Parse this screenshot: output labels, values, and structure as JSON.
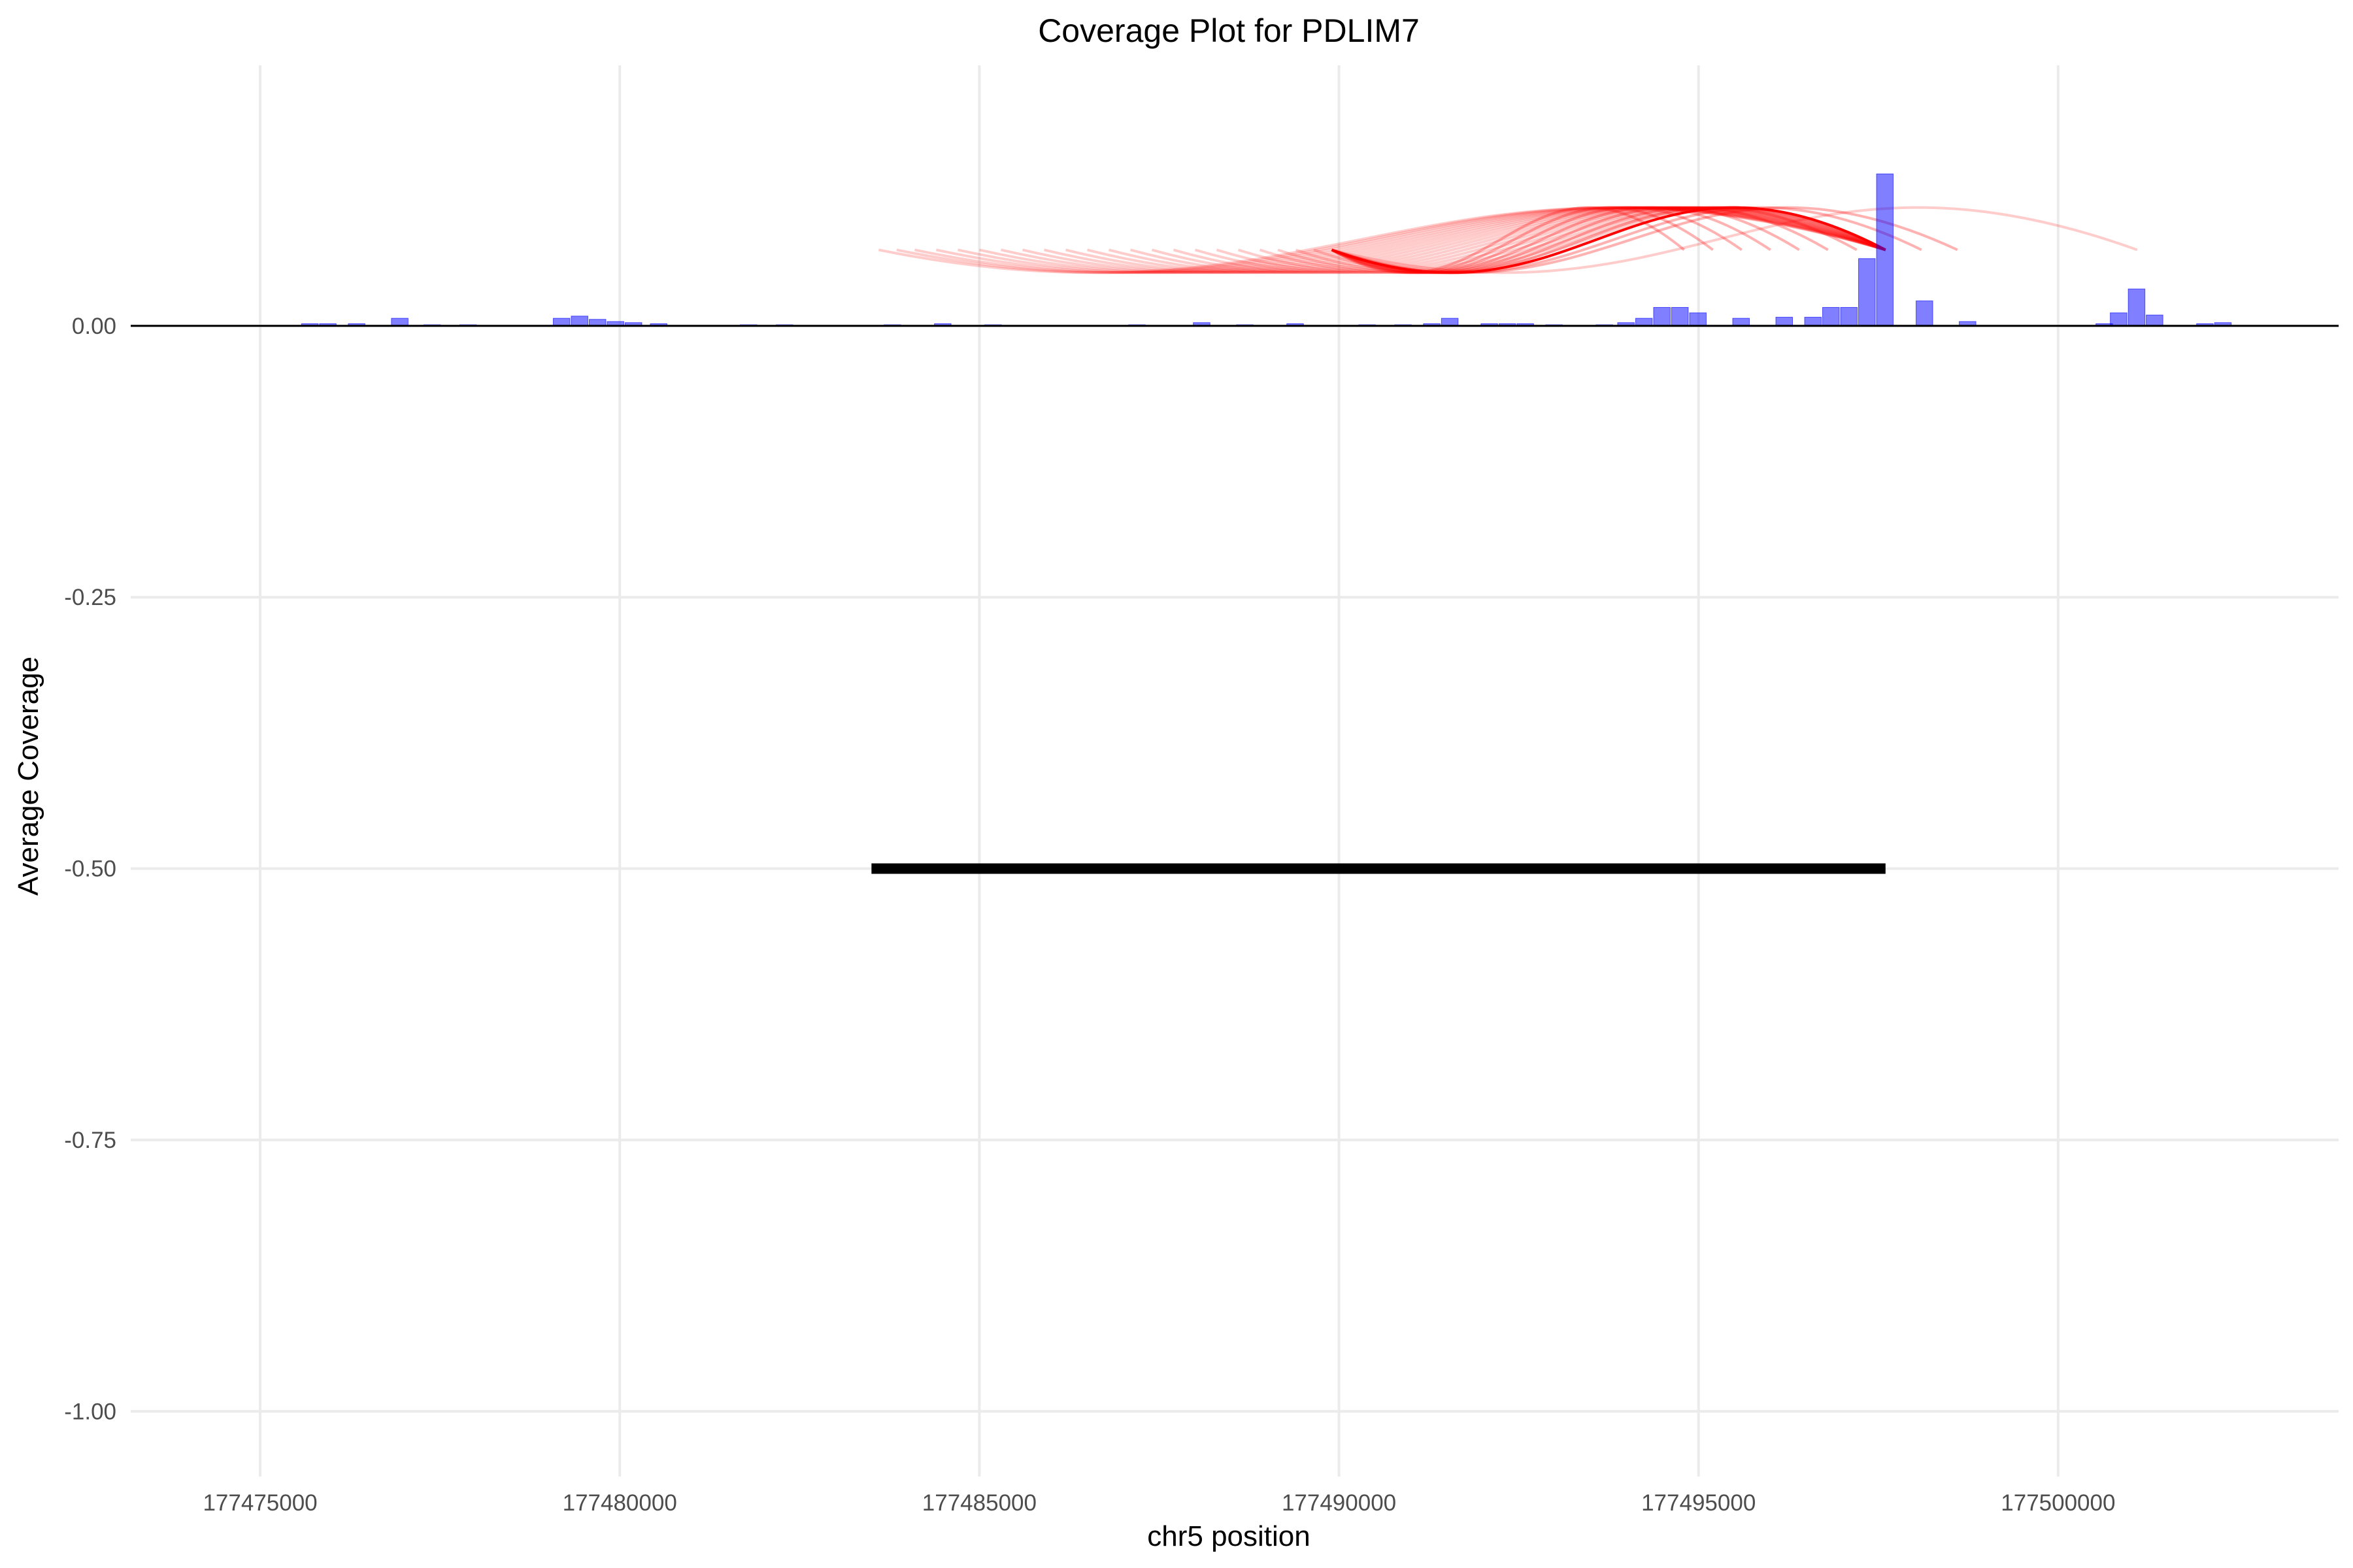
{
  "chart_data": {
    "type": "bar",
    "title": "Coverage Plot for PDLIM7",
    "xlabel": "chr5 position",
    "ylabel": "Average Coverage",
    "xlim": [
      177473200,
      177503900
    ],
    "ylim": [
      -1.06,
      0.24
    ],
    "x_ticks": [
      177475000,
      177480000,
      177485000,
      177490000,
      177495000,
      177500000
    ],
    "x_tick_labels": [
      "177475000",
      "177480000",
      "177485000",
      "177490000",
      "177495000",
      "177500000"
    ],
    "y_ticks": [
      0,
      -0.25,
      -0.5,
      -0.75,
      -1
    ],
    "y_tick_labels": [
      "0.00",
      "-0.25",
      "-0.50",
      "-0.75",
      "-1.00"
    ],
    "grid": true,
    "bin_width": 250,
    "colors": {
      "bars": "#0000ff",
      "arcs": "#ff0000",
      "gene": "#000000",
      "baseline": "#000000"
    },
    "coverage": [
      {
        "x": 177475700,
        "y": 0.002
      },
      {
        "x": 177475950,
        "y": 0.002
      },
      {
        "x": 177476350,
        "y": 0.002
      },
      {
        "x": 177476950,
        "y": 0.007
      },
      {
        "x": 177477400,
        "y": 0.001
      },
      {
        "x": 177477900,
        "y": 0.001
      },
      {
        "x": 177479200,
        "y": 0.007
      },
      {
        "x": 177479450,
        "y": 0.009
      },
      {
        "x": 177479700,
        "y": 0.006
      },
      {
        "x": 177479950,
        "y": 0.004
      },
      {
        "x": 177480200,
        "y": 0.003
      },
      {
        "x": 177480550,
        "y": 0.002
      },
      {
        "x": 177481800,
        "y": 0.001
      },
      {
        "x": 177482300,
        "y": 0.001
      },
      {
        "x": 177483800,
        "y": 0.001
      },
      {
        "x": 177484500,
        "y": 0.002
      },
      {
        "x": 177485200,
        "y": 0.001
      },
      {
        "x": 177487200,
        "y": 0.001
      },
      {
        "x": 177488100,
        "y": 0.003
      },
      {
        "x": 177488700,
        "y": 0.001
      },
      {
        "x": 177489400,
        "y": 0.002
      },
      {
        "x": 177490400,
        "y": 0.001
      },
      {
        "x": 177490900,
        "y": 0.001
      },
      {
        "x": 177491300,
        "y": 0.002
      },
      {
        "x": 177491550,
        "y": 0.007
      },
      {
        "x": 177492100,
        "y": 0.002
      },
      {
        "x": 177492350,
        "y": 0.002
      },
      {
        "x": 177492600,
        "y": 0.002
      },
      {
        "x": 177493000,
        "y": 0.001
      },
      {
        "x": 177493700,
        "y": 0.001
      },
      {
        "x": 177494000,
        "y": 0.003
      },
      {
        "x": 177494250,
        "y": 0.007
      },
      {
        "x": 177494500,
        "y": 0.017
      },
      {
        "x": 177494750,
        "y": 0.017
      },
      {
        "x": 177495000,
        "y": 0.012
      },
      {
        "x": 177495600,
        "y": 0.007
      },
      {
        "x": 177496200,
        "y": 0.008
      },
      {
        "x": 177496600,
        "y": 0.008
      },
      {
        "x": 177496850,
        "y": 0.017
      },
      {
        "x": 177497100,
        "y": 0.017
      },
      {
        "x": 177497350,
        "y": 0.062
      },
      {
        "x": 177497600,
        "y": 0.14
      },
      {
        "x": 177498150,
        "y": 0.023
      },
      {
        "x": 177498750,
        "y": 0.004
      },
      {
        "x": 177500650,
        "y": 0.002
      },
      {
        "x": 177500850,
        "y": 0.012
      },
      {
        "x": 177501100,
        "y": 0.034
      },
      {
        "x": 177501350,
        "y": 0.01
      },
      {
        "x": 177502050,
        "y": 0.002
      },
      {
        "x": 177502300,
        "y": 0.003
      }
    ],
    "junction_arcs": [
      {
        "start": 177483600,
        "end": 177497600,
        "opacity": 0.2
      },
      {
        "start": 177483850,
        "end": 177497600,
        "opacity": 0.2
      },
      {
        "start": 177484100,
        "end": 177497600,
        "opacity": 0.2
      },
      {
        "start": 177484400,
        "end": 177497600,
        "opacity": 0.2
      },
      {
        "start": 177484700,
        "end": 177497600,
        "opacity": 0.2
      },
      {
        "start": 177485000,
        "end": 177497600,
        "opacity": 0.2
      },
      {
        "start": 177485300,
        "end": 177497600,
        "opacity": 0.2
      },
      {
        "start": 177485600,
        "end": 177497600,
        "opacity": 0.2
      },
      {
        "start": 177485900,
        "end": 177497600,
        "opacity": 0.2
      },
      {
        "start": 177486200,
        "end": 177497600,
        "opacity": 0.2
      },
      {
        "start": 177486500,
        "end": 177497600,
        "opacity": 0.2
      },
      {
        "start": 177486800,
        "end": 177497600,
        "opacity": 0.2
      },
      {
        "start": 177487100,
        "end": 177497600,
        "opacity": 0.2
      },
      {
        "start": 177487400,
        "end": 177497600,
        "opacity": 0.2
      },
      {
        "start": 177487700,
        "end": 177497600,
        "opacity": 0.2
      },
      {
        "start": 177488000,
        "end": 177497600,
        "opacity": 0.2
      },
      {
        "start": 177488300,
        "end": 177497600,
        "opacity": 0.2
      },
      {
        "start": 177488600,
        "end": 177497600,
        "opacity": 0.2
      },
      {
        "start": 177488900,
        "end": 177497600,
        "opacity": 0.2
      },
      {
        "start": 177489150,
        "end": 177497600,
        "opacity": 0.2
      },
      {
        "start": 177489400,
        "end": 177497600,
        "opacity": 0.2
      },
      {
        "start": 177489650,
        "end": 177497600,
        "opacity": 0.2
      },
      {
        "start": 177489900,
        "end": 177497600,
        "opacity": 1.0
      },
      {
        "start": 177489900,
        "end": 177497200,
        "opacity": 0.3
      },
      {
        "start": 177489900,
        "end": 177496800,
        "opacity": 0.3
      },
      {
        "start": 177489900,
        "end": 177496400,
        "opacity": 0.3
      },
      {
        "start": 177489900,
        "end": 177496000,
        "opacity": 0.3
      },
      {
        "start": 177489900,
        "end": 177495600,
        "opacity": 0.3
      },
      {
        "start": 177489900,
        "end": 177495200,
        "opacity": 0.3
      },
      {
        "start": 177489900,
        "end": 177494800,
        "opacity": 0.3
      },
      {
        "start": 177489900,
        "end": 177498100,
        "opacity": 0.3
      },
      {
        "start": 177489900,
        "end": 177498600,
        "opacity": 0.3
      },
      {
        "start": 177489900,
        "end": 177501100,
        "opacity": 0.2
      }
    ],
    "gene": {
      "start": 177483500,
      "end": 177497600,
      "y": -0.5
    }
  }
}
